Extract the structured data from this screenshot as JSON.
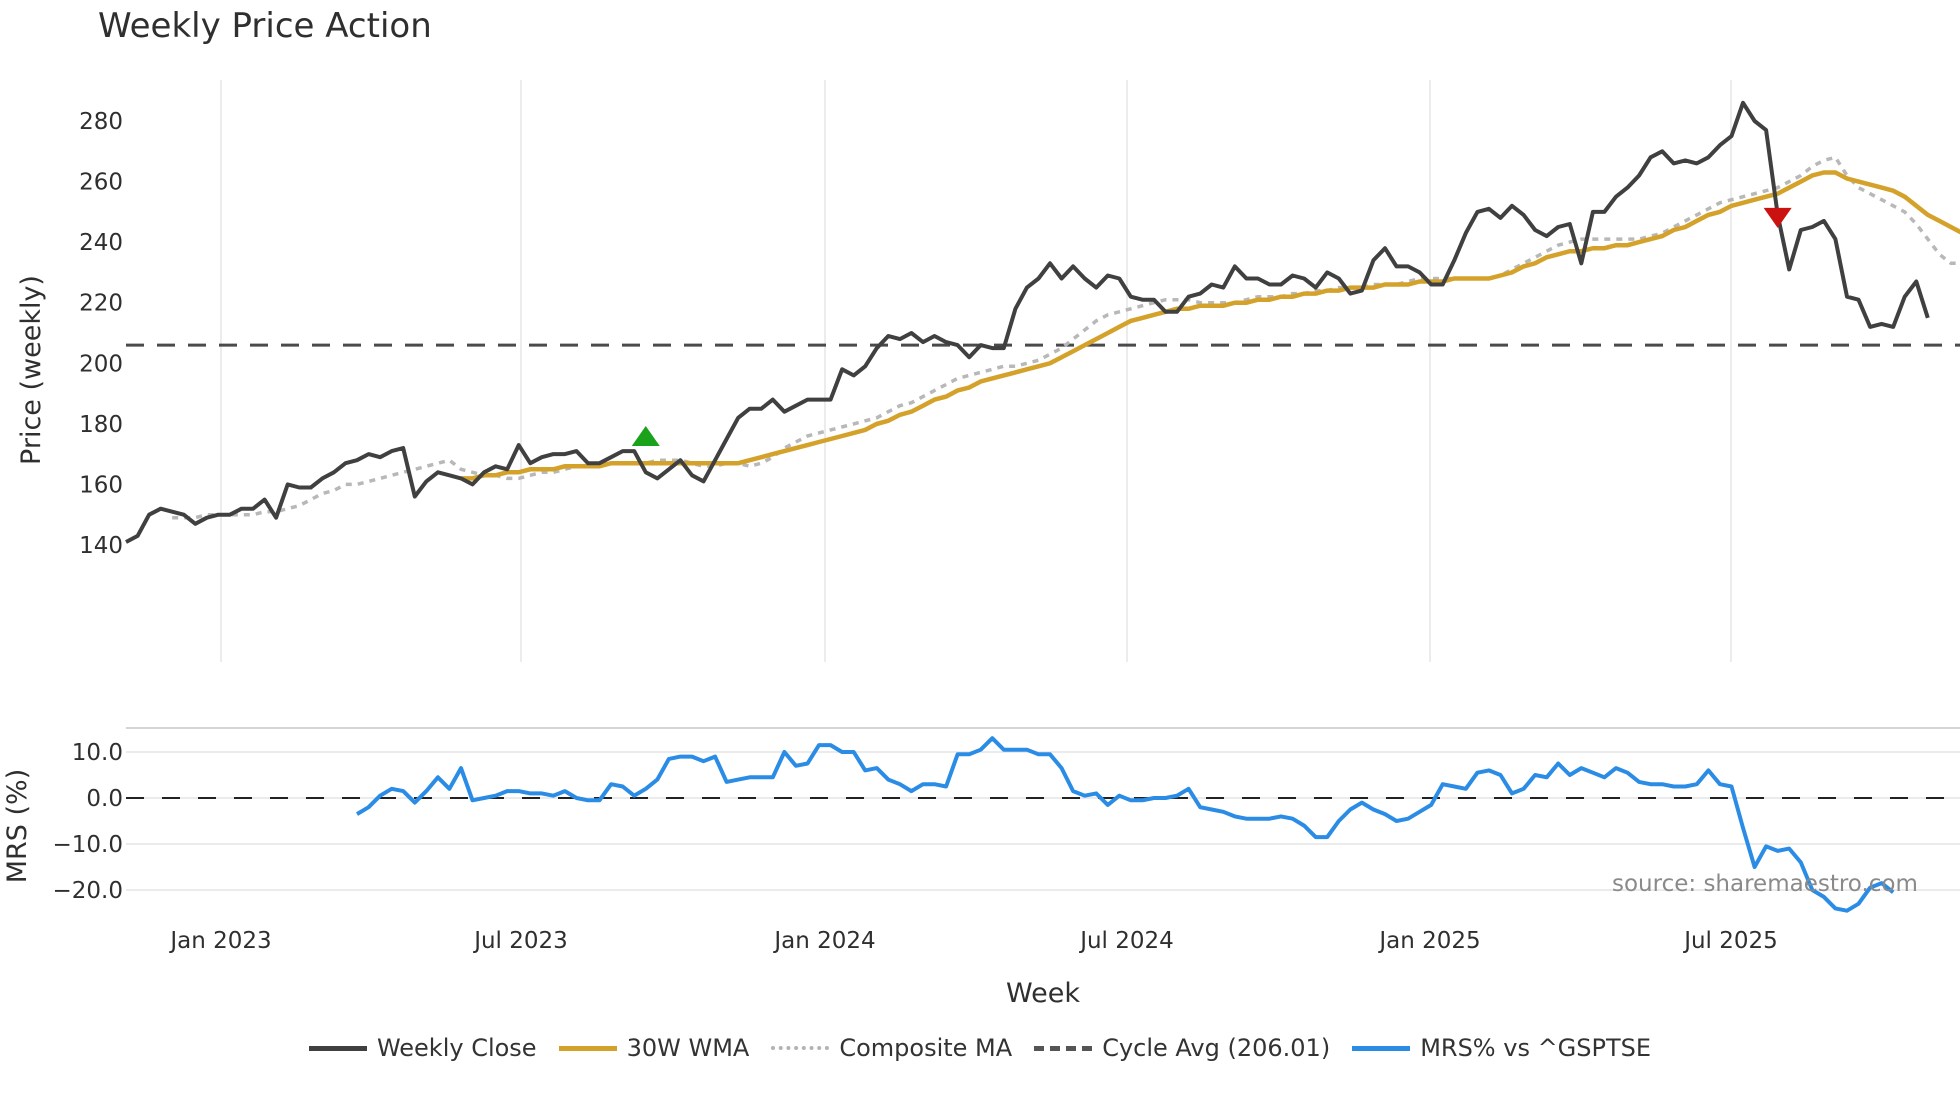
{
  "title": "Weekly Price Action",
  "price_axis": {
    "label": "Price (weekly)",
    "ticks": [
      "140",
      "160",
      "180",
      "200",
      "220",
      "240",
      "260",
      "280"
    ]
  },
  "mrs_axis": {
    "label": "MRS (%)",
    "ticks": [
      "10.0",
      "0.0",
      "−10.0",
      "−20.0"
    ]
  },
  "x_axis": {
    "label": "Week",
    "ticks": [
      "Jan 2023",
      "Jul 2023",
      "Jan 2024",
      "Jul 2024",
      "Jan 2025",
      "Jul 2025"
    ]
  },
  "source": "source: sharemaestro.com",
  "legend": [
    {
      "label": "Weekly Close",
      "color": "#404040",
      "style": "solid"
    },
    {
      "label": "30W WMA",
      "color": "#d4a22a",
      "style": "solid"
    },
    {
      "label": "Composite MA",
      "color": "#b3b3b3",
      "style": "dotted"
    },
    {
      "label": "Cycle Avg (206.01)",
      "color": "#555555",
      "style": "dashed"
    },
    {
      "label": "MRS% vs ^GSPTSE",
      "color": "#2b8ce6",
      "style": "solid"
    }
  ],
  "chart_data": [
    {
      "type": "line",
      "title": "Weekly Price Action",
      "xlabel": "Week",
      "ylabel": "Price (weekly)",
      "ylim": [
        133,
        294
      ],
      "cycle_avg": 206.01,
      "x_ticks": [
        "Jan 2023",
        "Jul 2023",
        "Jan 2024",
        "Jul 2024",
        "Jan 2025",
        "Jul 2025"
      ],
      "x_start_week_offset": -8,
      "markers": [
        {
          "type": "buy",
          "shape": "triangle-up",
          "color": "#1aa31a",
          "week_index": 45,
          "value": 176
        },
        {
          "type": "sell",
          "shape": "triangle-down",
          "color": "#cc1111",
          "week_index": 143,
          "value": 248
        }
      ],
      "series": [
        {
          "name": "Weekly Close",
          "start": 0,
          "values": [
            141,
            143,
            150,
            152,
            151,
            150,
            147,
            149,
            150,
            150,
            152,
            152,
            155,
            149,
            160,
            159,
            159,
            162,
            164,
            167,
            168,
            170,
            169,
            171,
            172,
            156,
            161,
            164,
            163,
            162,
            160,
            164,
            166,
            165,
            173,
            167,
            169,
            170,
            170,
            171,
            167,
            167,
            169,
            171,
            171,
            164,
            162,
            165,
            168,
            163,
            161,
            168,
            175,
            182,
            185,
            185,
            188,
            184,
            186,
            188,
            188,
            188,
            198,
            196,
            199,
            205,
            209,
            208,
            210,
            207,
            209,
            207,
            206,
            202,
            206,
            205,
            205,
            218,
            225,
            228,
            233,
            228,
            232,
            228,
            225,
            229,
            228,
            222,
            221,
            221,
            217,
            217,
            222,
            223,
            226,
            225,
            232,
            228,
            228,
            226,
            226,
            229,
            228,
            225,
            230,
            228,
            223,
            224,
            234,
            238,
            232,
            232,
            230,
            226,
            226,
            234,
            243,
            250,
            251,
            248,
            252,
            249,
            244,
            242,
            245,
            246,
            233,
            250,
            250,
            255,
            258,
            262,
            268,
            270,
            266,
            267,
            266,
            268,
            272,
            275,
            286,
            280,
            277,
            249,
            231,
            244,
            245,
            247,
            241,
            222,
            221,
            212,
            213,
            212,
            222,
            227,
            215
          ]
        },
        {
          "name": "30W WMA",
          "start": 29,
          "values": [
            162,
            162,
            163,
            163,
            164,
            164,
            165,
            165,
            165,
            166,
            166,
            166,
            166,
            167,
            167,
            167,
            167,
            167,
            167,
            167,
            167,
            167,
            167,
            167,
            167,
            168,
            169,
            170,
            171,
            172,
            173,
            174,
            175,
            176,
            177,
            178,
            180,
            181,
            183,
            184,
            186,
            188,
            189,
            191,
            192,
            194,
            195,
            196,
            197,
            198,
            199,
            200,
            202,
            204,
            206,
            208,
            210,
            212,
            214,
            215,
            216,
            217,
            218,
            218,
            219,
            219,
            219,
            220,
            220,
            221,
            221,
            222,
            222,
            223,
            223,
            224,
            224,
            225,
            225,
            225,
            226,
            226,
            226,
            227,
            227,
            227,
            228,
            228,
            228,
            228,
            229,
            230,
            232,
            233,
            235,
            236,
            237,
            237,
            238,
            238,
            239,
            239,
            240,
            241,
            242,
            244,
            245,
            247,
            249,
            250,
            252,
            253,
            254,
            255,
            256,
            258,
            260,
            262,
            263,
            263,
            261,
            260,
            259,
            258,
            257,
            255,
            252,
            249,
            247,
            245,
            243,
            241,
            240
          ]
        },
        {
          "name": "Composite MA",
          "start": 4,
          "values": [
            149,
            149,
            149,
            150,
            150,
            150,
            150,
            150,
            151,
            151,
            152,
            153,
            155,
            157,
            158,
            160,
            160,
            161,
            162,
            163,
            164,
            165,
            166,
            167,
            168,
            165,
            164,
            163,
            163,
            162,
            162,
            163,
            164,
            164,
            165,
            166,
            166,
            167,
            167,
            167,
            167,
            167,
            168,
            168,
            168,
            167,
            166,
            166,
            167,
            167,
            166,
            167,
            169,
            172,
            174,
            176,
            177,
            178,
            179,
            180,
            181,
            182,
            184,
            186,
            187,
            189,
            191,
            193,
            195,
            196,
            197,
            198,
            199,
            199,
            200,
            201,
            203,
            205,
            208,
            211,
            214,
            216,
            217,
            218,
            219,
            220,
            221,
            221,
            221,
            220,
            220,
            220,
            220,
            221,
            222,
            222,
            222,
            223,
            223,
            224,
            224,
            225,
            225,
            225,
            226,
            226,
            226,
            227,
            228,
            228,
            228,
            228,
            228,
            228,
            228,
            229,
            231,
            233,
            235,
            237,
            239,
            240,
            241,
            241,
            241,
            241,
            241,
            241,
            242,
            243,
            245,
            247,
            249,
            251,
            253,
            254,
            255,
            256,
            257,
            258,
            260,
            262,
            265,
            267,
            268,
            262,
            258,
            256,
            254,
            252,
            250,
            246,
            241,
            236,
            233,
            233,
            232,
            231
          ]
        },
        {
          "name": "MRS% vs ^GSPTSE",
          "start": 20,
          "values": [
            -3.5,
            -2,
            0.5,
            2,
            1.5,
            -1,
            1.5,
            4.5,
            2,
            6.5,
            -0.5,
            0,
            0.5,
            1.5,
            1.5,
            1,
            1,
            0.5,
            1.5,
            0,
            -0.5,
            -0.5,
            3,
            2.5,
            0.5,
            2,
            4,
            8.5,
            9,
            9,
            8,
            9,
            3.5,
            4,
            4.5,
            4.5,
            4.5,
            10,
            7,
            7.5,
            11.5,
            11.5,
            10,
            10,
            6,
            6.5,
            4,
            3,
            1.5,
            3,
            3,
            2.5,
            9.5,
            9.5,
            10.5,
            13,
            10.5,
            10.5,
            10.5,
            9.5,
            9.5,
            6.5,
            1.5,
            0.5,
            1,
            -1.5,
            0.5,
            -0.5,
            -0.5,
            0,
            0,
            0.5,
            2,
            -2,
            -2.5,
            -3,
            -4,
            -4.5,
            -4.5,
            -4.5,
            -4,
            -4.5,
            -6,
            -8.5,
            -8.5,
            -5,
            -2.5,
            -1,
            -2.5,
            -3.5,
            -5,
            -4.5,
            -3,
            -1.5,
            3,
            2.5,
            2,
            5.5,
            6,
            5,
            1,
            2,
            5,
            4.5,
            7.5,
            5,
            6.5,
            5.5,
            4.5,
            6.5,
            5.5,
            3.5,
            3,
            3,
            2.5,
            2.5,
            3,
            6,
            3,
            2.5,
            -6.5,
            -15,
            -10.5,
            -11.5,
            -11,
            -14,
            -20,
            -21.5,
            -24,
            -24.5,
            -23,
            -19.5,
            -18.5,
            -20.5
          ]
        }
      ]
    }
  ]
}
